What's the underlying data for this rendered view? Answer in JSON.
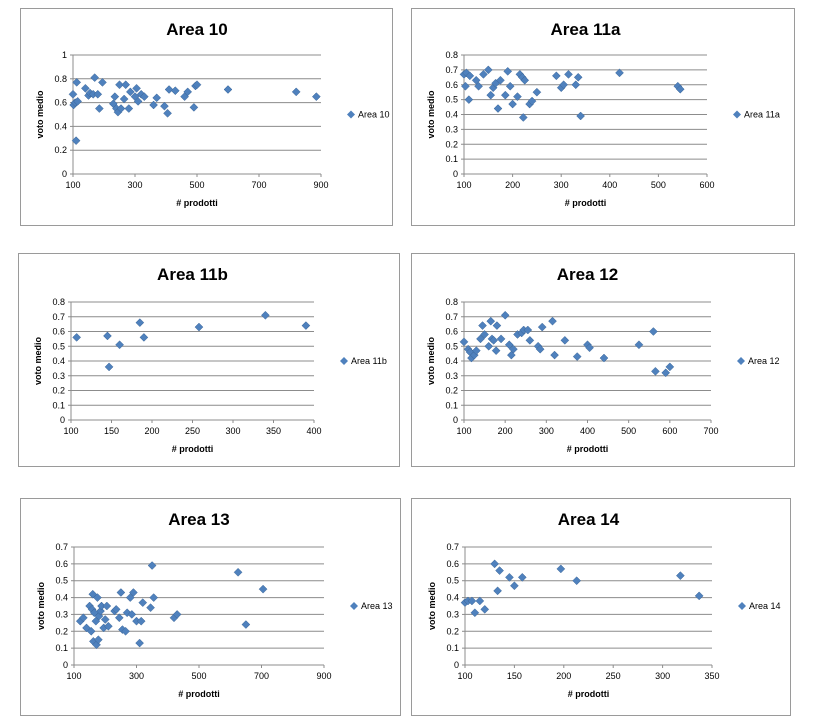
{
  "chart_data": [
    {
      "type": "scatter",
      "title": "Area 10",
      "xlabel": "# prodotti",
      "ylabel": "voto medio",
      "legend": "Area 10",
      "xlim": [
        100,
        900
      ],
      "ylim": [
        0,
        1
      ],
      "xticks": [
        100,
        300,
        500,
        700,
        900
      ],
      "yticks": [
        0,
        0.2,
        0.4,
        0.6,
        0.8,
        1
      ],
      "color": "#4f81bd",
      "points": [
        [
          100,
          0.67
        ],
        [
          102,
          0.58
        ],
        [
          107,
          0.6
        ],
        [
          110,
          0.28
        ],
        [
          112,
          0.77
        ],
        [
          115,
          0.61
        ],
        [
          140,
          0.72
        ],
        [
          150,
          0.66
        ],
        [
          155,
          0.68
        ],
        [
          165,
          0.67
        ],
        [
          170,
          0.81
        ],
        [
          180,
          0.67
        ],
        [
          185,
          0.55
        ],
        [
          195,
          0.77
        ],
        [
          230,
          0.59
        ],
        [
          235,
          0.65
        ],
        [
          240,
          0.55
        ],
        [
          245,
          0.52
        ],
        [
          250,
          0.75
        ],
        [
          255,
          0.55
        ],
        [
          265,
          0.63
        ],
        [
          270,
          0.75
        ],
        [
          280,
          0.55
        ],
        [
          285,
          0.69
        ],
        [
          300,
          0.65
        ],
        [
          305,
          0.72
        ],
        [
          310,
          0.61
        ],
        [
          320,
          0.67
        ],
        [
          330,
          0.65
        ],
        [
          360,
          0.58
        ],
        [
          370,
          0.64
        ],
        [
          395,
          0.57
        ],
        [
          405,
          0.51
        ],
        [
          410,
          0.71
        ],
        [
          430,
          0.7
        ],
        [
          460,
          0.65
        ],
        [
          470,
          0.69
        ],
        [
          490,
          0.56
        ],
        [
          495,
          0.74
        ],
        [
          500,
          0.75
        ],
        [
          600,
          0.71
        ],
        [
          820,
          0.69
        ],
        [
          885,
          0.65
        ]
      ]
    },
    {
      "type": "scatter",
      "title": "Area 11a",
      "xlabel": "# prodotti",
      "ylabel": "voto medio",
      "legend": "Area 11a",
      "xlim": [
        100,
        600
      ],
      "ylim": [
        0,
        0.8
      ],
      "xticks": [
        100,
        200,
        300,
        400,
        500,
        600
      ],
      "yticks": [
        0,
        0.1,
        0.2,
        0.3,
        0.4,
        0.5,
        0.6,
        0.7,
        0.8
      ],
      "color": "#4f81bd",
      "points": [
        [
          100,
          0.67
        ],
        [
          103,
          0.59
        ],
        [
          105,
          0.68
        ],
        [
          110,
          0.5
        ],
        [
          112,
          0.66
        ],
        [
          125,
          0.63
        ],
        [
          130,
          0.59
        ],
        [
          140,
          0.67
        ],
        [
          150,
          0.7
        ],
        [
          155,
          0.53
        ],
        [
          160,
          0.58
        ],
        [
          165,
          0.61
        ],
        [
          170,
          0.44
        ],
        [
          175,
          0.63
        ],
        [
          185,
          0.53
        ],
        [
          190,
          0.69
        ],
        [
          195,
          0.59
        ],
        [
          200,
          0.47
        ],
        [
          210,
          0.52
        ],
        [
          215,
          0.67
        ],
        [
          220,
          0.65
        ],
        [
          222,
          0.38
        ],
        [
          225,
          0.63
        ],
        [
          235,
          0.47
        ],
        [
          240,
          0.49
        ],
        [
          250,
          0.55
        ],
        [
          290,
          0.66
        ],
        [
          300,
          0.58
        ],
        [
          305,
          0.6
        ],
        [
          315,
          0.67
        ],
        [
          330,
          0.6
        ],
        [
          335,
          0.65
        ],
        [
          340,
          0.39
        ],
        [
          420,
          0.68
        ],
        [
          540,
          0.59
        ],
        [
          545,
          0.57
        ]
      ]
    },
    {
      "type": "scatter",
      "title": "Area 11b",
      "xlabel": "# prodotti",
      "ylabel": "voto medio",
      "legend": "Area 11b",
      "xlim": [
        100,
        400
      ],
      "ylim": [
        0,
        0.8
      ],
      "xticks": [
        100,
        150,
        200,
        250,
        300,
        350,
        400
      ],
      "yticks": [
        0,
        0.1,
        0.2,
        0.3,
        0.4,
        0.5,
        0.6,
        0.7,
        0.8
      ],
      "color": "#4f81bd",
      "points": [
        [
          107,
          0.56
        ],
        [
          145,
          0.57
        ],
        [
          147,
          0.36
        ],
        [
          160,
          0.51
        ],
        [
          185,
          0.66
        ],
        [
          190,
          0.56
        ],
        [
          258,
          0.63
        ],
        [
          340,
          0.71
        ],
        [
          390,
          0.64
        ]
      ]
    },
    {
      "type": "scatter",
      "title": "Area 12",
      "xlabel": "# prodotti",
      "ylabel": "voto medio",
      "legend": "Area 12",
      "xlim": [
        100,
        700
      ],
      "ylim": [
        0,
        0.8
      ],
      "xticks": [
        100,
        200,
        300,
        400,
        500,
        600,
        700
      ],
      "yticks": [
        0,
        0.1,
        0.2,
        0.3,
        0.4,
        0.5,
        0.6,
        0.7,
        0.8
      ],
      "color": "#4f81bd",
      "points": [
        [
          100,
          0.53
        ],
        [
          110,
          0.48
        ],
        [
          115,
          0.46
        ],
        [
          118,
          0.42
        ],
        [
          125,
          0.44
        ],
        [
          130,
          0.47
        ],
        [
          140,
          0.55
        ],
        [
          145,
          0.64
        ],
        [
          150,
          0.58
        ],
        [
          160,
          0.5
        ],
        [
          165,
          0.67
        ],
        [
          168,
          0.55
        ],
        [
          172,
          0.54
        ],
        [
          178,
          0.47
        ],
        [
          180,
          0.64
        ],
        [
          190,
          0.55
        ],
        [
          200,
          0.71
        ],
        [
          210,
          0.51
        ],
        [
          215,
          0.44
        ],
        [
          220,
          0.48
        ],
        [
          230,
          0.58
        ],
        [
          240,
          0.59
        ],
        [
          245,
          0.61
        ],
        [
          255,
          0.61
        ],
        [
          260,
          0.54
        ],
        [
          280,
          0.5
        ],
        [
          285,
          0.48
        ],
        [
          290,
          0.63
        ],
        [
          315,
          0.67
        ],
        [
          320,
          0.44
        ],
        [
          345,
          0.54
        ],
        [
          375,
          0.43
        ],
        [
          400,
          0.51
        ],
        [
          405,
          0.49
        ],
        [
          440,
          0.42
        ],
        [
          525,
          0.51
        ],
        [
          560,
          0.6
        ],
        [
          565,
          0.33
        ],
        [
          590,
          0.32
        ],
        [
          600,
          0.36
        ]
      ]
    },
    {
      "type": "scatter",
      "title": "Area 13",
      "xlabel": "# prodotti",
      "ylabel": "voto medio",
      "legend": "Area 13",
      "xlim": [
        100,
        900
      ],
      "ylim": [
        0,
        0.7
      ],
      "xticks": [
        100,
        300,
        500,
        700,
        900
      ],
      "yticks": [
        0,
        0.1,
        0.2,
        0.3,
        0.4,
        0.5,
        0.6,
        0.7
      ],
      "color": "#4f81bd",
      "points": [
        [
          120,
          0.26
        ],
        [
          130,
          0.28
        ],
        [
          140,
          0.22
        ],
        [
          150,
          0.35
        ],
        [
          155,
          0.2
        ],
        [
          158,
          0.33
        ],
        [
          160,
          0.42
        ],
        [
          162,
          0.14
        ],
        [
          165,
          0.31
        ],
        [
          170,
          0.26
        ],
        [
          172,
          0.12
        ],
        [
          175,
          0.4
        ],
        [
          178,
          0.15
        ],
        [
          180,
          0.29
        ],
        [
          185,
          0.32
        ],
        [
          188,
          0.35
        ],
        [
          195,
          0.22
        ],
        [
          200,
          0.27
        ],
        [
          205,
          0.35
        ],
        [
          210,
          0.23
        ],
        [
          230,
          0.32
        ],
        [
          235,
          0.33
        ],
        [
          245,
          0.28
        ],
        [
          250,
          0.43
        ],
        [
          255,
          0.21
        ],
        [
          265,
          0.2
        ],
        [
          270,
          0.31
        ],
        [
          280,
          0.4
        ],
        [
          285,
          0.3
        ],
        [
          290,
          0.43
        ],
        [
          300,
          0.26
        ],
        [
          310,
          0.13
        ],
        [
          315,
          0.26
        ],
        [
          320,
          0.37
        ],
        [
          345,
          0.34
        ],
        [
          350,
          0.59
        ],
        [
          355,
          0.4
        ],
        [
          420,
          0.28
        ],
        [
          430,
          0.3
        ],
        [
          625,
          0.55
        ],
        [
          650,
          0.24
        ],
        [
          705,
          0.45
        ]
      ]
    },
    {
      "type": "scatter",
      "title": "Area 14",
      "xlabel": "# prodotti",
      "ylabel": "voto medio",
      "legend": "Area 14",
      "xlim": [
        100,
        350
      ],
      "ylim": [
        0,
        0.7
      ],
      "xticks": [
        100,
        150,
        200,
        250,
        300,
        350
      ],
      "yticks": [
        0,
        0.1,
        0.2,
        0.3,
        0.4,
        0.5,
        0.6,
        0.7
      ],
      "color": "#4f81bd",
      "points": [
        [
          100,
          0.37
        ],
        [
          103,
          0.38
        ],
        [
          107,
          0.38
        ],
        [
          110,
          0.31
        ],
        [
          115,
          0.38
        ],
        [
          120,
          0.33
        ],
        [
          130,
          0.6
        ],
        [
          133,
          0.44
        ],
        [
          135,
          0.56
        ],
        [
          145,
          0.52
        ],
        [
          150,
          0.47
        ],
        [
          158,
          0.52
        ],
        [
          197,
          0.57
        ],
        [
          213,
          0.5
        ],
        [
          318,
          0.53
        ],
        [
          337,
          0.41
        ]
      ]
    }
  ]
}
